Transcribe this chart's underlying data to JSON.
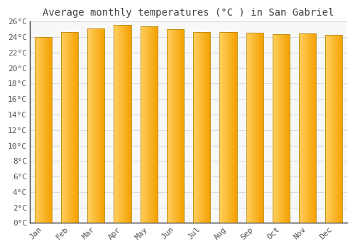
{
  "title": "Average monthly temperatures (°C ) in San Gabriel",
  "months": [
    "Jan",
    "Feb",
    "Mar",
    "Apr",
    "May",
    "Jun",
    "Jul",
    "Aug",
    "Sep",
    "Oct",
    "Nov",
    "Dec"
  ],
  "values": [
    24.0,
    24.7,
    25.1,
    25.6,
    25.4,
    25.0,
    24.7,
    24.7,
    24.6,
    24.4,
    24.5,
    24.3
  ],
  "bar_color_left": "#FFD060",
  "bar_color_right": "#F5A800",
  "bar_edge_color": "#B8860B",
  "background_color": "#FFFFFF",
  "plot_bg_color": "#F8F8F8",
  "grid_color": "#D8DCE8",
  "ylim": [
    0,
    26
  ],
  "yticks": [
    0,
    2,
    4,
    6,
    8,
    10,
    12,
    14,
    16,
    18,
    20,
    22,
    24,
    26
  ],
  "title_fontsize": 10,
  "tick_fontsize": 8,
  "font_family": "monospace"
}
